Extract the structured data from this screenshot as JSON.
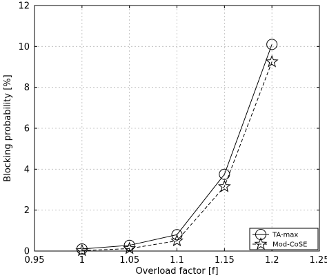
{
  "chart_data": {
    "type": "line",
    "title": "",
    "xlabel": "Overload factor [f]",
    "ylabel": "Blocking probability [%]",
    "xlim": [
      0.95,
      1.25
    ],
    "ylim": [
      0,
      12
    ],
    "xticks": [
      "0.95",
      "1",
      "1.05",
      "1.1",
      "1.15",
      "1.2",
      "1.25"
    ],
    "yticks": [
      "0",
      "2",
      "4",
      "6",
      "8",
      "10",
      "12"
    ],
    "grid": true,
    "legend_position": "bottom-right",
    "series": [
      {
        "name": "TA-max",
        "x": [
          1.0,
          1.05,
          1.1,
          1.15,
          1.2
        ],
        "y": [
          0.1,
          0.28,
          0.8,
          3.75,
          10.1
        ],
        "line_style": "solid",
        "marker": "circle"
      },
      {
        "name": "Mod-CoSE",
        "x": [
          1.0,
          1.05,
          1.1,
          1.15,
          1.2
        ],
        "y": [
          0.02,
          0.12,
          0.5,
          3.15,
          9.25
        ],
        "line_style": "dashed",
        "marker": "star"
      }
    ]
  }
}
